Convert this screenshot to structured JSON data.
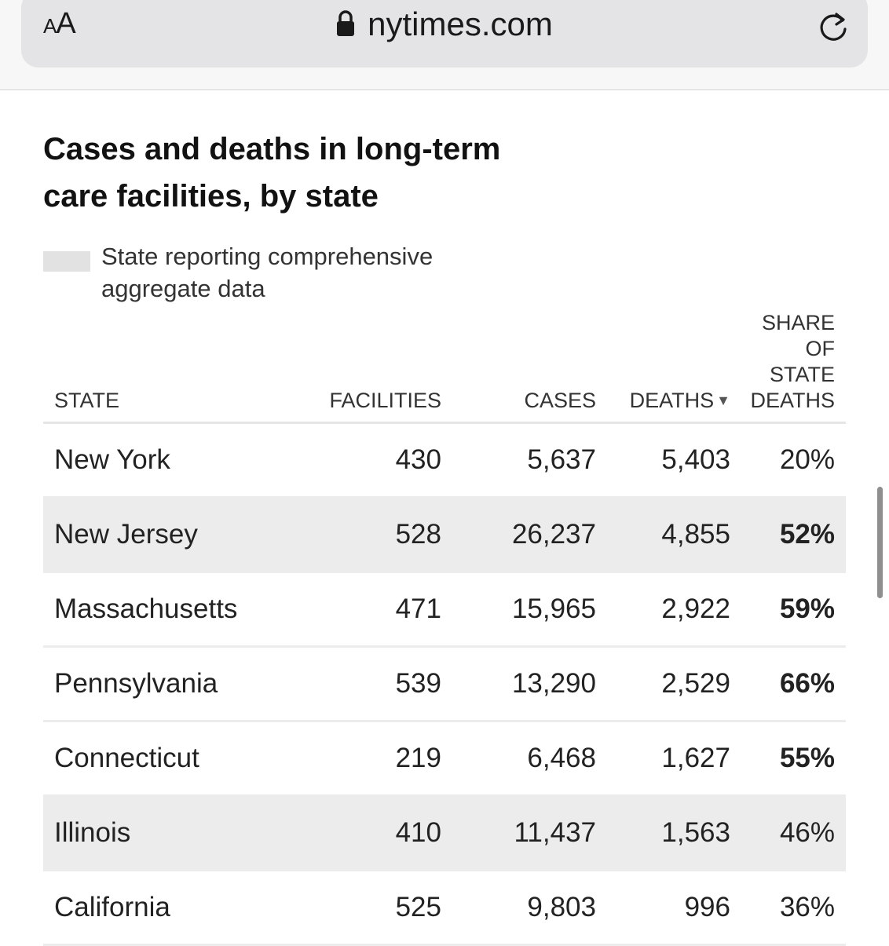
{
  "browser": {
    "text_size_small": "A",
    "text_size_large": "A",
    "url": "nytimes.com"
  },
  "article": {
    "title": "Cases and deaths in long-term care facilities, by state",
    "legend": "State reporting comprehensive aggregate data",
    "legend_color": "#e2e2e2"
  },
  "table": {
    "headers": {
      "state": "State",
      "facilities": "Facilities",
      "cases": "Cases",
      "deaths": "Deaths",
      "share": "Share of state deaths"
    },
    "rows": [
      {
        "state": "New York",
        "facilities": "430",
        "cases": "5,637",
        "deaths": "5,403",
        "share": "20%",
        "comprehensive": false
      },
      {
        "state": "New Jersey",
        "facilities": "528",
        "cases": "26,237",
        "deaths": "4,855",
        "share": "52%",
        "comprehensive": true
      },
      {
        "state": "Massachusetts",
        "facilities": "471",
        "cases": "15,965",
        "deaths": "2,922",
        "share": "59%",
        "comprehensive": false
      },
      {
        "state": "Pennsylvania",
        "facilities": "539",
        "cases": "13,290",
        "deaths": "2,529",
        "share": "66%",
        "comprehensive": false
      },
      {
        "state": "Connecticut",
        "facilities": "219",
        "cases": "6,468",
        "deaths": "1,627",
        "share": "55%",
        "comprehensive": false
      },
      {
        "state": "Illinois",
        "facilities": "410",
        "cases": "11,437",
        "deaths": "1,563",
        "share": "46%",
        "comprehensive": true
      },
      {
        "state": "California",
        "facilities": "525",
        "cases": "9,803",
        "deaths": "996",
        "share": "36%",
        "comprehensive": false
      }
    ],
    "bold_share_rows": [
      1,
      2,
      3,
      4
    ]
  }
}
